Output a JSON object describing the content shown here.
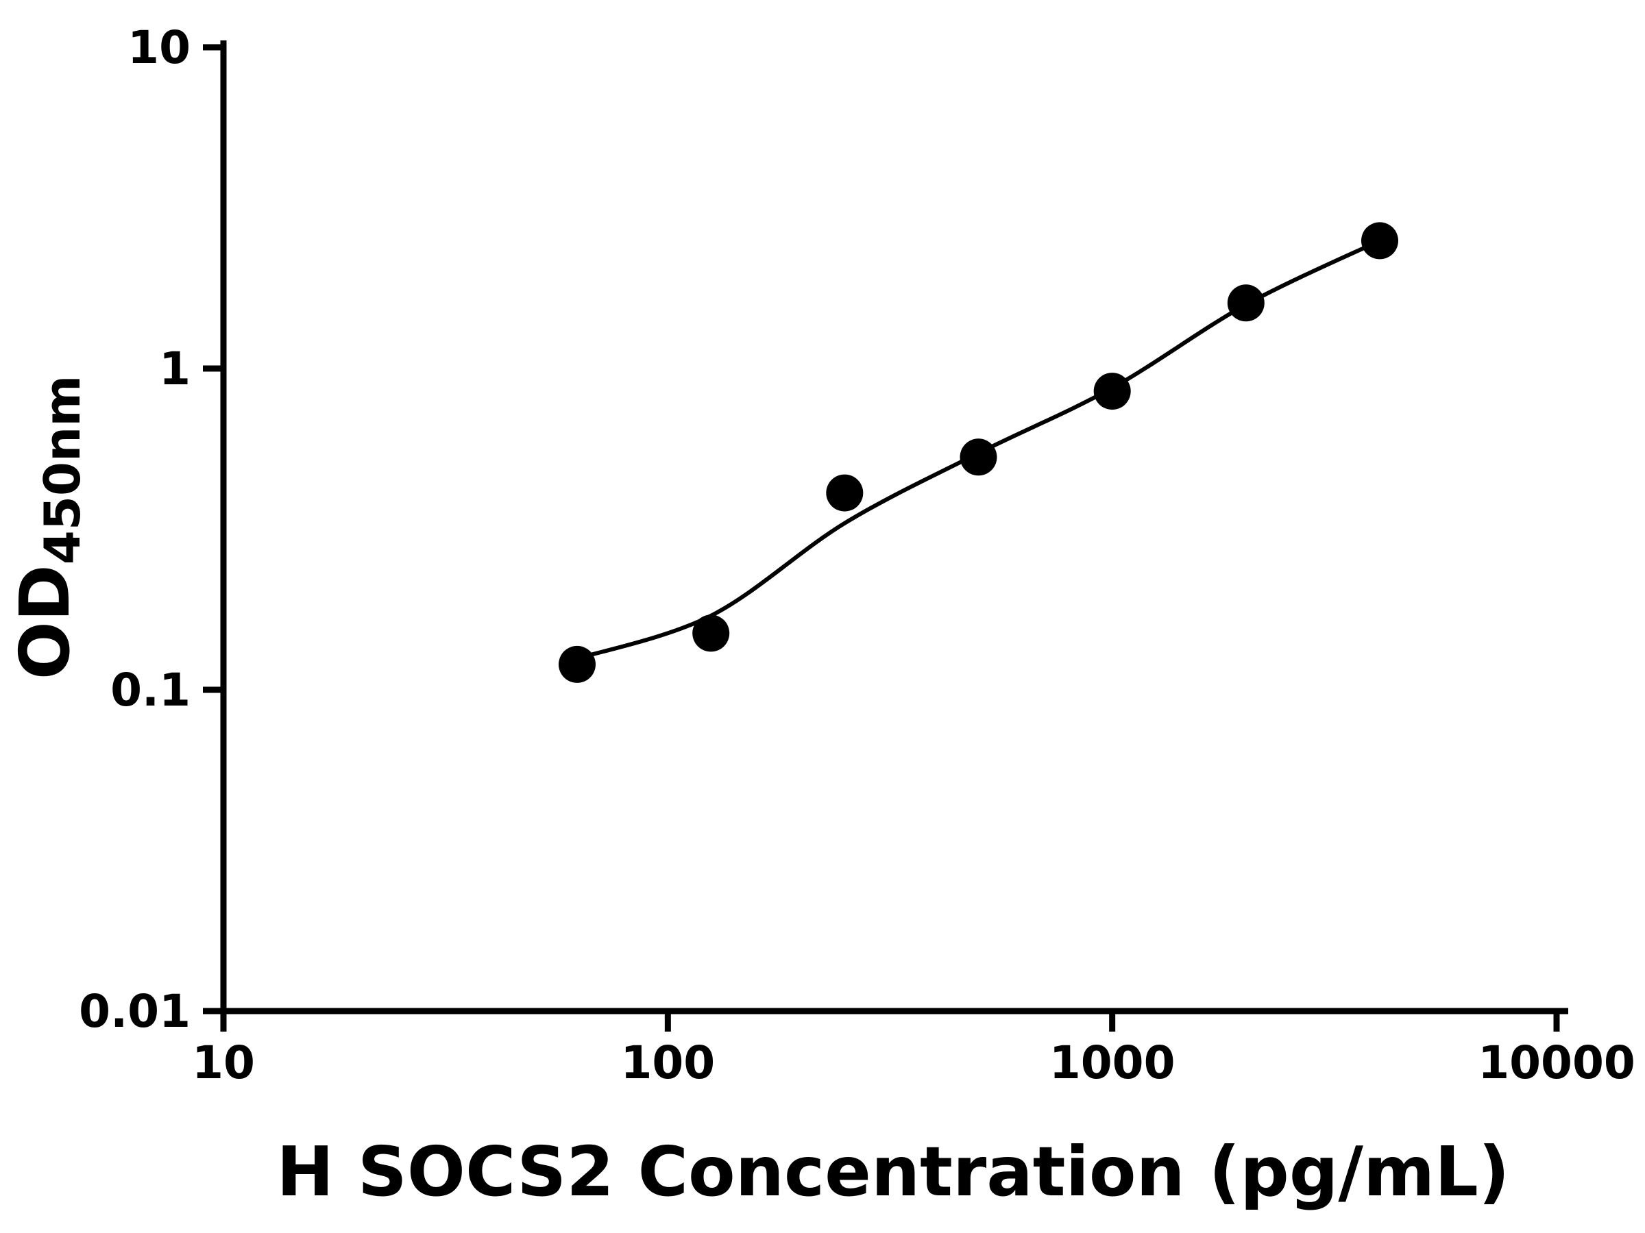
{
  "chart_data": {
    "type": "scatter",
    "title": "",
    "xlabel": "H SOCS2 Concentration (pg/mL)",
    "ylabel_main": "OD",
    "ylabel_sub": "450nm",
    "x_scale": "log",
    "y_scale": "log",
    "xlim": [
      10,
      10000
    ],
    "ylim": [
      0.01,
      10
    ],
    "x_ticks": [
      10,
      100,
      1000,
      10000
    ],
    "x_tick_labels": [
      "10",
      "100",
      "1000",
      "10000"
    ],
    "y_ticks": [
      0.01,
      0.1,
      1,
      10
    ],
    "y_tick_labels": [
      "0.01",
      "0.1",
      "1",
      "10"
    ],
    "grid": false,
    "legend": null,
    "marker_color": "#000000",
    "line_color": "#000000",
    "background_color": "#ffffff",
    "points": [
      {
        "x": 62.5,
        "y": 0.12
      },
      {
        "x": 125,
        "y": 0.15
      },
      {
        "x": 250,
        "y": 0.41
      },
      {
        "x": 500,
        "y": 0.53
      },
      {
        "x": 1000,
        "y": 0.85
      },
      {
        "x": 2000,
        "y": 1.6
      },
      {
        "x": 4000,
        "y": 2.5
      }
    ],
    "fit_curve": [
      {
        "x": 62.5,
        "y": 0.125
      },
      {
        "x": 125,
        "y": 0.17
      },
      {
        "x": 250,
        "y": 0.33
      },
      {
        "x": 500,
        "y": 0.545
      },
      {
        "x": 1000,
        "y": 0.87
      },
      {
        "x": 2000,
        "y": 1.58
      },
      {
        "x": 4000,
        "y": 2.5
      }
    ]
  }
}
